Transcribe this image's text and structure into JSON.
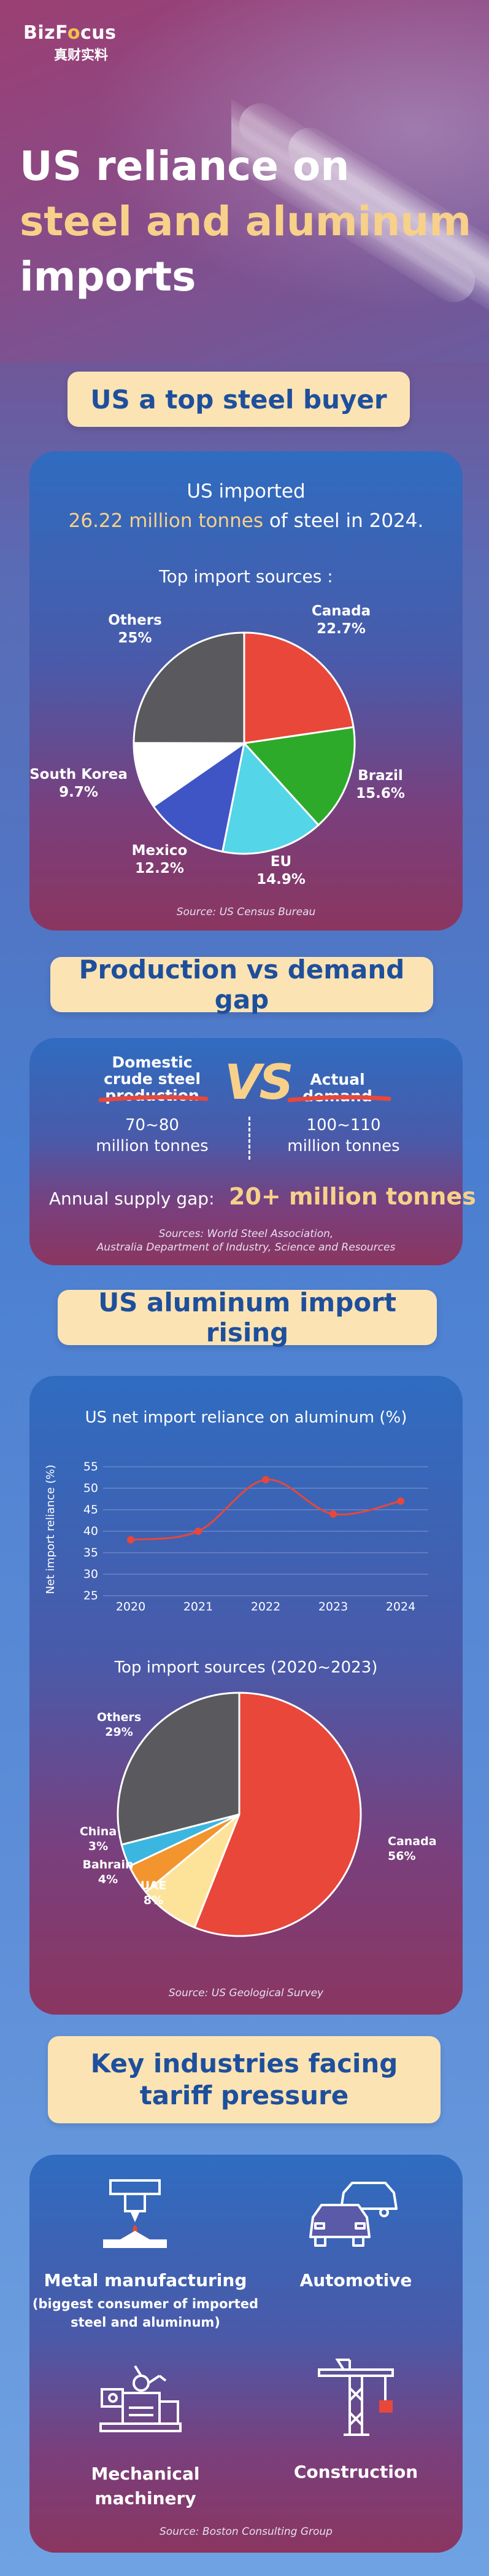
{
  "brand": {
    "logo_pre": "BizF",
    "logo_o": "o",
    "logo_post": "cus",
    "logo_sub": "真财实料"
  },
  "title": {
    "line1": "US reliance on",
    "line2": "steel and aluminum",
    "line3": "imports"
  },
  "section1": {
    "heading": "US a top steel buyer",
    "intro": "US imported",
    "amount": "26.22 million tonnes",
    "intro_tail": " of steel in 2024.",
    "sources_label": "Top import sources :",
    "source": "Source: US Census Bureau"
  },
  "section2": {
    "heading": "Production vs demand gap",
    "left_label": "Domestic crude steel production",
    "left_value_l1": "70~80",
    "left_value_l2": "million tonnes",
    "vs": "VS",
    "right_label": "Actual demand",
    "right_value_l1": "100~110",
    "right_value_l2": "million tonnes",
    "gap_label": "Annual supply gap:",
    "gap_value": "20+ million tonnes",
    "source_l1": "Sources: World Steel Association,",
    "source_l2": "Australia Department of Industry, Science and Resources"
  },
  "section3": {
    "heading": "US aluminum import rising",
    "line_title": "US net import reliance on aluminum (%)",
    "pie_title": "Top import sources (2020~2023)",
    "source": "Source: US Geological Survey"
  },
  "section4": {
    "heading_l1": "Key industries facing",
    "heading_l2": "tariff pressure",
    "items": [
      {
        "label_l1": "Metal manufacturing",
        "label_l2": "(biggest consumer of imported",
        "label_l3": "steel and aluminum)",
        "icon": "metal-press-icon"
      },
      {
        "label_l1": "Automotive",
        "icon": "cars-icon"
      },
      {
        "label_l1": "Mechanical",
        "label_l2": "machinery",
        "icon": "machinery-icon"
      },
      {
        "label_l1": "Construction",
        "icon": "crane-icon"
      }
    ],
    "source": "Source: Boston Consulting Group"
  },
  "colors": {
    "accent": "#f7d08a",
    "pill": "#fbe3b4",
    "pill_text": "#1e4f9c",
    "red": "#e8473a"
  },
  "chart_data": [
    {
      "type": "pie",
      "title": "Top import sources :",
      "categories": [
        "Canada",
        "Brazil",
        "EU",
        "Mexico",
        "South Korea",
        "Others"
      ],
      "labels": [
        "22.7%",
        "15.6%",
        "14.9%",
        "12.2%",
        "9.7%",
        "25%"
      ],
      "values": [
        22.7,
        15.6,
        14.9,
        12.2,
        9.7,
        25
      ],
      "colors": [
        "#e8473a",
        "#2eaa2a",
        "#54d6e8",
        "#3f55c6",
        "#ffffff",
        "#5a5a5e"
      ]
    },
    {
      "type": "line",
      "title": "US net import reliance on aluminum (%)",
      "ylabel": "Net import reliance (%)",
      "x": [
        "2020",
        "2021",
        "2022",
        "2023",
        "2024"
      ],
      "values": [
        38,
        40,
        52,
        44,
        47
      ],
      "yticks": [
        "25",
        "30",
        "35",
        "40",
        "45",
        "50",
        "55"
      ],
      "ylim": [
        25,
        55
      ],
      "grid": true
    },
    {
      "type": "pie",
      "title": "Top import sources (2020~2023)",
      "categories": [
        "Canada",
        "UAE",
        "Bahrain",
        "China",
        "Others"
      ],
      "labels": [
        "56%",
        "8%",
        "4%",
        "3%",
        "29%"
      ],
      "values": [
        56,
        8,
        4,
        3,
        29
      ],
      "colors": [
        "#e8473a",
        "#fde39a",
        "#f2952e",
        "#3bb6e0",
        "#5a5a5e"
      ]
    }
  ]
}
